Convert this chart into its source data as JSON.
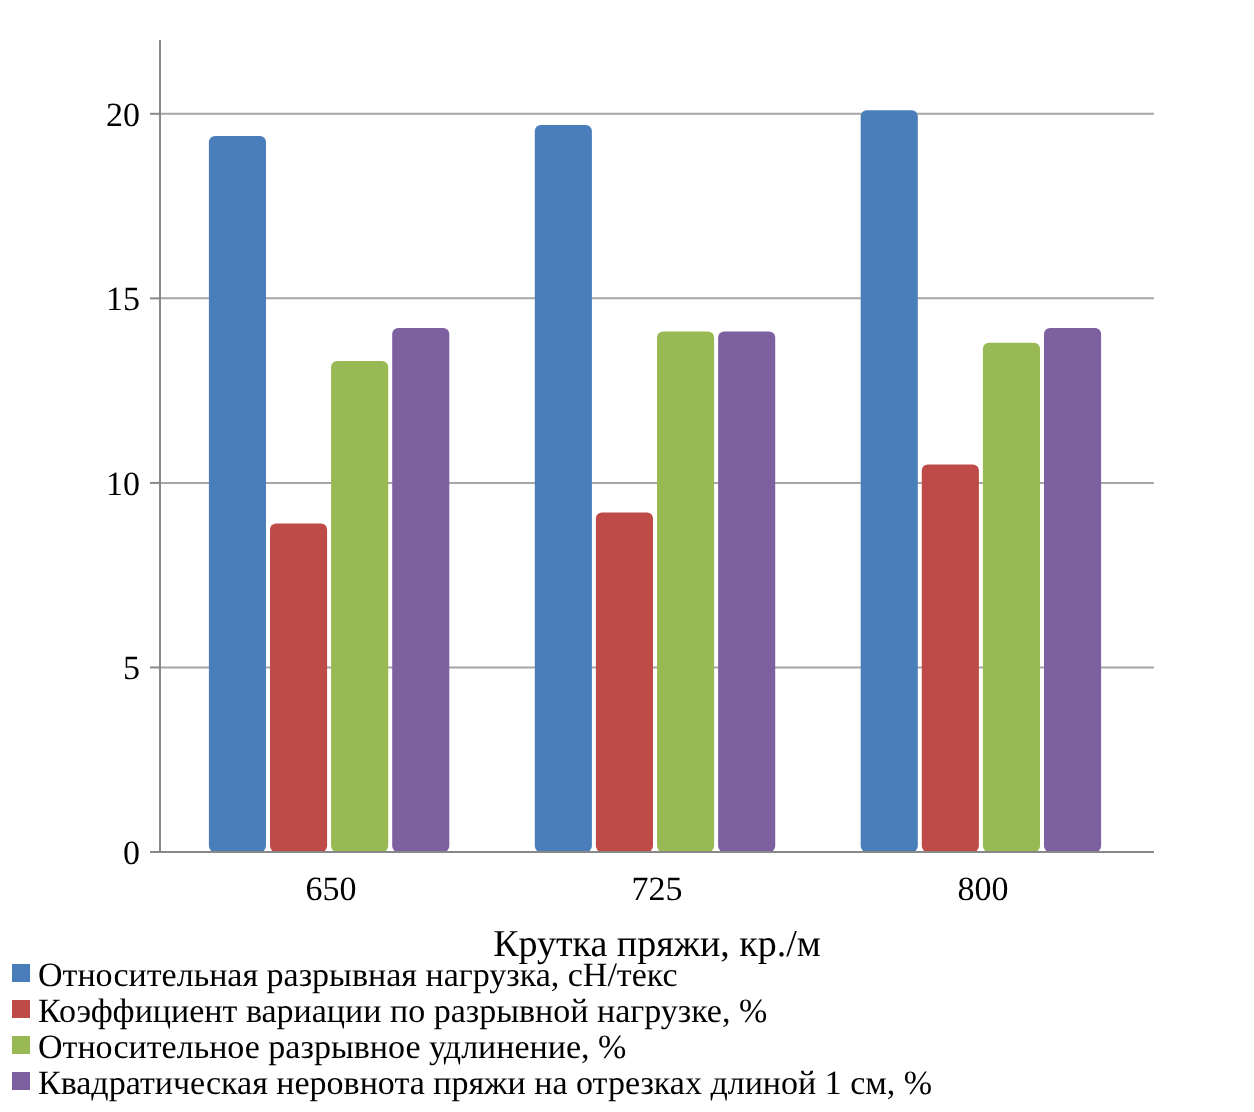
{
  "chart_data": {
    "type": "bar",
    "categories": [
      "650",
      "725",
      "800"
    ],
    "xlabel": "Крутка пряжи, кр./м",
    "ylim": [
      0,
      22
    ],
    "yticks": [
      0,
      5,
      10,
      15,
      20
    ],
    "grid": "y",
    "legend": "bottom",
    "series": [
      {
        "name": "Относительная разрывная нагрузка,  сН/текс",
        "color": "#4a7ebb",
        "values": [
          19.4,
          19.7,
          20.1
        ]
      },
      {
        "name": "Коэффициент вариации по разрывной нагрузке, %",
        "color": "#be4b48",
        "values": [
          8.9,
          9.2,
          10.5
        ]
      },
      {
        "name": "Относительное разрывное удлинение, %",
        "color": "#98b954",
        "values": [
          13.3,
          14.1,
          13.8
        ]
      },
      {
        "name": "Квадратическая неровнота пряжи на отрезках  длиной 1 см, %",
        "color": "#7d60a0",
        "values": [
          14.2,
          14.1,
          14.2
        ]
      }
    ]
  }
}
